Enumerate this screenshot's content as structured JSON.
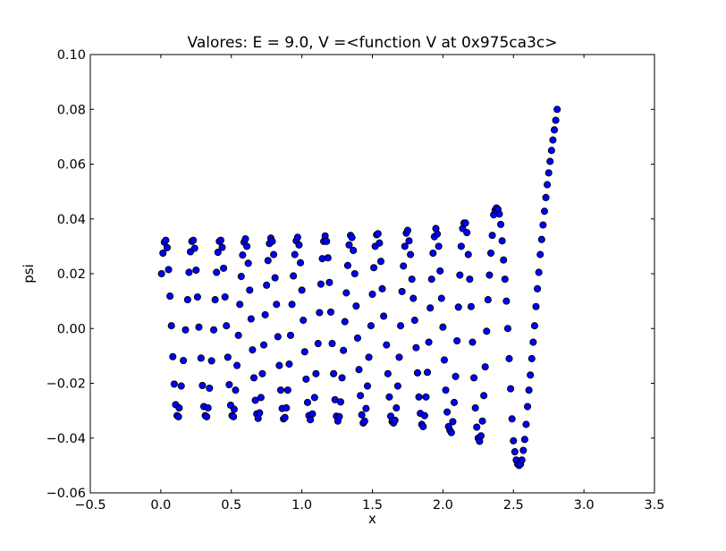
{
  "chart_data": {
    "type": "scatter",
    "title": "Valores: E = 9.0, V =<function V at 0x975ca3c>",
    "xlabel": "x",
    "ylabel": "psi",
    "xlim": [
      -0.5,
      3.5
    ],
    "ylim": [
      -0.06,
      0.1
    ],
    "xticks": [
      -0.5,
      0.0,
      0.5,
      1.0,
      1.5,
      2.0,
      2.5,
      3.0,
      3.5
    ],
    "xtick_labels": [
      "−0.5",
      "0.0",
      "0.5",
      "1.0",
      "1.5",
      "2.0",
      "2.5",
      "3.0",
      "3.5"
    ],
    "yticks": [
      -0.06,
      -0.04,
      -0.02,
      0.0,
      0.02,
      0.04,
      0.06,
      0.08,
      0.1
    ],
    "ytick_labels": [
      "−0.06",
      "−0.04",
      "−0.02",
      "0.00",
      "0.02",
      "0.04",
      "0.06",
      "0.08",
      "0.10"
    ],
    "grid": false,
    "legend": "none",
    "marker_color": "#0000ff",
    "marker_edge_color": "#000000",
    "series": [
      {
        "points": [
          [
            0.005,
            0.02
          ],
          [
            0.015,
            0.0275
          ],
          [
            0.025,
            0.0315
          ],
          [
            0.035,
            0.0322
          ],
          [
            0.045,
            0.0295
          ],
          [
            0.055,
            0.0215
          ],
          [
            0.065,
            0.0118
          ],
          [
            0.075,
            0.001
          ],
          [
            0.085,
            -0.0103
          ],
          [
            0.095,
            -0.0203
          ],
          [
            0.105,
            -0.0278
          ],
          [
            0.115,
            -0.0318
          ],
          [
            0.125,
            -0.0322
          ],
          [
            0.13,
            -0.029
          ],
          [
            0.145,
            -0.021
          ],
          [
            0.16,
            -0.0117
          ],
          [
            0.175,
            -0.0005
          ],
          [
            0.19,
            0.0105
          ],
          [
            0.2,
            0.0205
          ],
          [
            0.21,
            0.028
          ],
          [
            0.22,
            0.0318
          ],
          [
            0.23,
            0.0322
          ],
          [
            0.24,
            0.0293
          ],
          [
            0.25,
            0.0213
          ],
          [
            0.26,
            0.0115
          ],
          [
            0.27,
            0.0005
          ],
          [
            0.285,
            -0.0108
          ],
          [
            0.295,
            -0.0208
          ],
          [
            0.305,
            -0.0285
          ],
          [
            0.315,
            -0.0318
          ],
          [
            0.325,
            -0.0322
          ],
          [
            0.335,
            -0.029
          ],
          [
            0.345,
            -0.0218
          ],
          [
            0.36,
            -0.0118
          ],
          [
            0.375,
            -0.0005
          ],
          [
            0.385,
            0.0105
          ],
          [
            0.395,
            0.0205
          ],
          [
            0.405,
            0.0278
          ],
          [
            0.415,
            0.0318
          ],
          [
            0.425,
            0.0322
          ],
          [
            0.435,
            0.0296
          ],
          [
            0.445,
            0.022
          ],
          [
            0.455,
            0.0115
          ],
          [
            0.465,
            0.001
          ],
          [
            0.475,
            -0.0105
          ],
          [
            0.485,
            -0.0205
          ],
          [
            0.495,
            -0.028
          ],
          [
            0.505,
            -0.0318
          ],
          [
            0.515,
            -0.0322
          ],
          [
            0.52,
            -0.0295
          ],
          [
            0.53,
            -0.0225
          ],
          [
            0.54,
            -0.0135
          ],
          [
            0.55,
            -0.0025
          ],
          [
            0.56,
            0.0088
          ],
          [
            0.57,
            0.019
          ],
          [
            0.58,
            0.0268
          ],
          [
            0.59,
            0.0315
          ],
          [
            0.6,
            0.0327
          ],
          [
            0.61,
            0.03
          ],
          [
            0.62,
            0.0238
          ],
          [
            0.63,
            0.014
          ],
          [
            0.64,
            0.0035
          ],
          [
            0.65,
            -0.0078
          ],
          [
            0.66,
            -0.018
          ],
          [
            0.67,
            -0.0262
          ],
          [
            0.68,
            -0.0312
          ],
          [
            0.69,
            -0.0328
          ],
          [
            0.7,
            -0.0308
          ],
          [
            0.71,
            -0.0252
          ],
          [
            0.72,
            -0.0165
          ],
          [
            0.73,
            -0.006
          ],
          [
            0.74,
            0.005
          ],
          [
            0.75,
            0.0158
          ],
          [
            0.76,
            0.0248
          ],
          [
            0.77,
            0.031
          ],
          [
            0.78,
            0.033
          ],
          [
            0.79,
            0.0318
          ],
          [
            0.8,
            0.027
          ],
          [
            0.81,
            0.0185
          ],
          [
            0.82,
            0.0088
          ],
          [
            0.83,
            -0.003
          ],
          [
            0.84,
            -0.0135
          ],
          [
            0.85,
            -0.0225
          ],
          [
            0.86,
            -0.0292
          ],
          [
            0.87,
            -0.033
          ],
          [
            0.88,
            -0.0325
          ],
          [
            0.89,
            -0.029
          ],
          [
            0.9,
            -0.0225
          ],
          [
            0.91,
            -0.013
          ],
          [
            0.92,
            -0.0025
          ],
          [
            0.93,
            0.0088
          ],
          [
            0.94,
            0.0192
          ],
          [
            0.95,
            0.027
          ],
          [
            0.96,
            0.032
          ],
          [
            0.97,
            0.0333
          ],
          [
            0.98,
            0.0305
          ],
          [
            0.99,
            0.024
          ],
          [
            1.0,
            0.014
          ],
          [
            1.01,
            0.003
          ],
          [
            1.02,
            -0.0085
          ],
          [
            1.03,
            -0.0185
          ],
          [
            1.04,
            -0.027
          ],
          [
            1.05,
            -0.0318
          ],
          [
            1.06,
            -0.0333
          ],
          [
            1.075,
            -0.0312
          ],
          [
            1.09,
            -0.0252
          ],
          [
            1.1,
            -0.0165
          ],
          [
            1.115,
            -0.0055
          ],
          [
            1.125,
            0.0058
          ],
          [
            1.135,
            0.0162
          ],
          [
            1.145,
            0.0255
          ],
          [
            1.155,
            0.0318
          ],
          [
            1.165,
            0.0338
          ],
          [
            1.175,
            0.0318
          ],
          [
            1.185,
            0.0258
          ],
          [
            1.195,
            0.0168
          ],
          [
            1.205,
            0.006
          ],
          [
            1.215,
            -0.0055
          ],
          [
            1.225,
            -0.0165
          ],
          [
            1.235,
            -0.026
          ],
          [
            1.245,
            -0.032
          ],
          [
            1.255,
            -0.0338
          ],
          [
            1.265,
            -0.0322
          ],
          [
            1.275,
            -0.0268
          ],
          [
            1.285,
            -0.018
          ],
          [
            1.295,
            -0.008
          ],
          [
            1.305,
            0.0025
          ],
          [
            1.315,
            0.013
          ],
          [
            1.325,
            0.023
          ],
          [
            1.335,
            0.0305
          ],
          [
            1.345,
            0.034
          ],
          [
            1.355,
            0.0332
          ],
          [
            1.365,
            0.0285
          ],
          [
            1.375,
            0.02
          ],
          [
            1.385,
            0.0082
          ],
          [
            1.395,
            -0.0035
          ],
          [
            1.405,
            -0.015
          ],
          [
            1.415,
            -0.0245
          ],
          [
            1.425,
            -0.0315
          ],
          [
            1.435,
            -0.0345
          ],
          [
            1.445,
            -0.0338
          ],
          [
            1.455,
            -0.0292
          ],
          [
            1.465,
            -0.021
          ],
          [
            1.475,
            -0.0105
          ],
          [
            1.49,
            0.001
          ],
          [
            1.5,
            0.0125
          ],
          [
            1.51,
            0.0222
          ],
          [
            1.52,
            0.03
          ],
          [
            1.53,
            0.0342
          ],
          [
            1.54,
            0.0346
          ],
          [
            1.55,
            0.0312
          ],
          [
            1.56,
            0.0245
          ],
          [
            1.57,
            0.0145
          ],
          [
            1.58,
            0.0045
          ],
          [
            1.6,
            -0.006
          ],
          [
            1.61,
            -0.0165
          ],
          [
            1.62,
            -0.025
          ],
          [
            1.63,
            -0.032
          ],
          [
            1.64,
            -0.034
          ],
          [
            1.65,
            -0.0345
          ],
          [
            1.66,
            -0.0335
          ],
          [
            1.67,
            -0.029
          ],
          [
            1.68,
            -0.021
          ],
          [
            1.69,
            -0.0105
          ],
          [
            1.7,
            0.001
          ],
          [
            1.71,
            0.0135
          ],
          [
            1.72,
            0.0228
          ],
          [
            1.73,
            0.03
          ],
          [
            1.74,
            0.0348
          ],
          [
            1.75,
            0.0358
          ],
          [
            1.76,
            0.032
          ],
          [
            1.77,
            0.027
          ],
          [
            1.78,
            0.018
          ],
          [
            1.79,
            0.011
          ],
          [
            1.8,
            0.003
          ],
          [
            1.81,
            -0.007
          ],
          [
            1.82,
            -0.0162
          ],
          [
            1.83,
            -0.025
          ],
          [
            1.84,
            -0.031
          ],
          [
            1.85,
            -0.035
          ],
          [
            1.86,
            -0.0358
          ],
          [
            1.87,
            -0.0318
          ],
          [
            1.88,
            -0.025
          ],
          [
            1.89,
            -0.016
          ],
          [
            1.9,
            -0.005
          ],
          [
            1.91,
            0.0075
          ],
          [
            1.92,
            0.018
          ],
          [
            1.93,
            0.0275
          ],
          [
            1.94,
            0.0335
          ],
          [
            1.95,
            0.0365
          ],
          [
            1.96,
            0.0345
          ],
          [
            1.97,
            0.03
          ],
          [
            1.98,
            0.021
          ],
          [
            1.99,
            0.011
          ],
          [
            2.0,
            0.0005
          ],
          [
            2.01,
            -0.0115
          ],
          [
            2.02,
            -0.0225
          ],
          [
            2.03,
            -0.0305
          ],
          [
            2.04,
            -0.0358
          ],
          [
            2.05,
            -0.0372
          ],
          [
            2.06,
            -0.038
          ],
          [
            2.07,
            -0.034
          ],
          [
            2.08,
            -0.027
          ],
          [
            2.09,
            -0.0175
          ],
          [
            2.1,
            -0.0045
          ],
          [
            2.11,
            0.0078
          ],
          [
            2.12,
            0.0195
          ],
          [
            2.13,
            0.03
          ],
          [
            2.14,
            0.0365
          ],
          [
            2.15,
            0.0385
          ],
          [
            2.16,
            0.0385
          ],
          [
            2.17,
            0.035
          ],
          [
            2.18,
            0.027
          ],
          [
            2.19,
            0.018
          ],
          [
            2.2,
            0.008
          ],
          [
            2.21,
            -0.005
          ],
          [
            2.22,
            -0.018
          ],
          [
            2.23,
            -0.029
          ],
          [
            2.24,
            -0.036
          ],
          [
            2.25,
            -0.04
          ],
          [
            2.26,
            -0.0412
          ],
          [
            2.27,
            -0.0392
          ],
          [
            2.28,
            -0.0338
          ],
          [
            2.29,
            -0.0245
          ],
          [
            2.3,
            -0.014
          ],
          [
            2.31,
            -0.001
          ],
          [
            2.32,
            0.0105
          ],
          [
            2.33,
            0.0195
          ],
          [
            2.34,
            0.0275
          ],
          [
            2.35,
            0.034
          ],
          [
            2.36,
            0.0415
          ],
          [
            2.37,
            0.0432
          ],
          [
            2.38,
            0.044
          ],
          [
            2.39,
            0.0435
          ],
          [
            2.4,
            0.0418
          ],
          [
            2.41,
            0.038
          ],
          [
            2.42,
            0.032
          ],
          [
            2.43,
            0.025
          ],
          [
            2.44,
            0.018
          ],
          [
            2.45,
            0.01
          ],
          [
            2.46,
            0.0
          ],
          [
            2.47,
            -0.011
          ],
          [
            2.48,
            -0.022
          ],
          [
            2.49,
            -0.033
          ],
          [
            2.5,
            -0.041
          ],
          [
            2.51,
            -0.045
          ],
          [
            2.52,
            -0.048
          ],
          [
            2.53,
            -0.0495
          ],
          [
            2.54,
            -0.05
          ],
          [
            2.55,
            -0.0495
          ],
          [
            2.56,
            -0.048
          ],
          [
            2.57,
            -0.0445
          ],
          [
            2.58,
            -0.0405
          ],
          [
            2.59,
            -0.035
          ],
          [
            2.6,
            -0.0285
          ],
          [
            2.61,
            -0.0225
          ],
          [
            2.62,
            -0.017
          ],
          [
            2.63,
            -0.011
          ],
          [
            2.64,
            -0.005
          ],
          [
            2.65,
            0.001
          ],
          [
            2.66,
            0.008
          ],
          [
            2.67,
            0.0145
          ],
          [
            2.68,
            0.0205
          ],
          [
            2.69,
            0.027
          ],
          [
            2.7,
            0.0325
          ],
          [
            2.71,
            0.0378
          ],
          [
            2.72,
            0.0428
          ],
          [
            2.73,
            0.0478
          ],
          [
            2.74,
            0.0525
          ],
          [
            2.75,
            0.0568
          ],
          [
            2.76,
            0.061
          ],
          [
            2.77,
            0.065
          ],
          [
            2.78,
            0.0688
          ],
          [
            2.79,
            0.0725
          ],
          [
            2.8,
            0.076
          ],
          [
            2.81,
            0.08
          ]
        ]
      }
    ]
  }
}
